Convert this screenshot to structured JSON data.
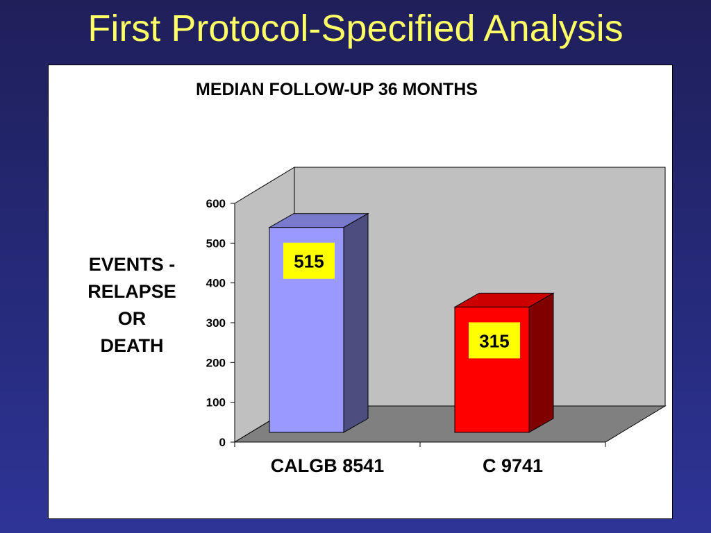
{
  "slide": {
    "title": "First Protocol-Specified Analysis"
  },
  "colors": {
    "background": "#262a7a",
    "title": "#ffff66",
    "wall": "#c0c0c0",
    "floor": "#808080",
    "label_box": "#ffff00"
  },
  "chart_data": {
    "type": "bar",
    "title": "MEDIAN FOLLOW-UP 36 MONTHS",
    "ylabel_lines": [
      "EVENTS -",
      "RELAPSE",
      "OR",
      "DEATH"
    ],
    "categories": [
      "CALGB 8541",
      "C 9741"
    ],
    "values": [
      515,
      315
    ],
    "data_labels": [
      "515",
      "315"
    ],
    "bar_colors": [
      {
        "front": "#9999ff",
        "top": "#7a7acc",
        "side": "#4d4d80"
      },
      {
        "front": "#ff0000",
        "top": "#cc0000",
        "side": "#800000"
      }
    ],
    "ylim": [
      0,
      600
    ],
    "yticks": [
      0,
      100,
      200,
      300,
      400,
      500,
      600
    ],
    "style": "3d-column",
    "grid": false,
    "legend": "none"
  }
}
